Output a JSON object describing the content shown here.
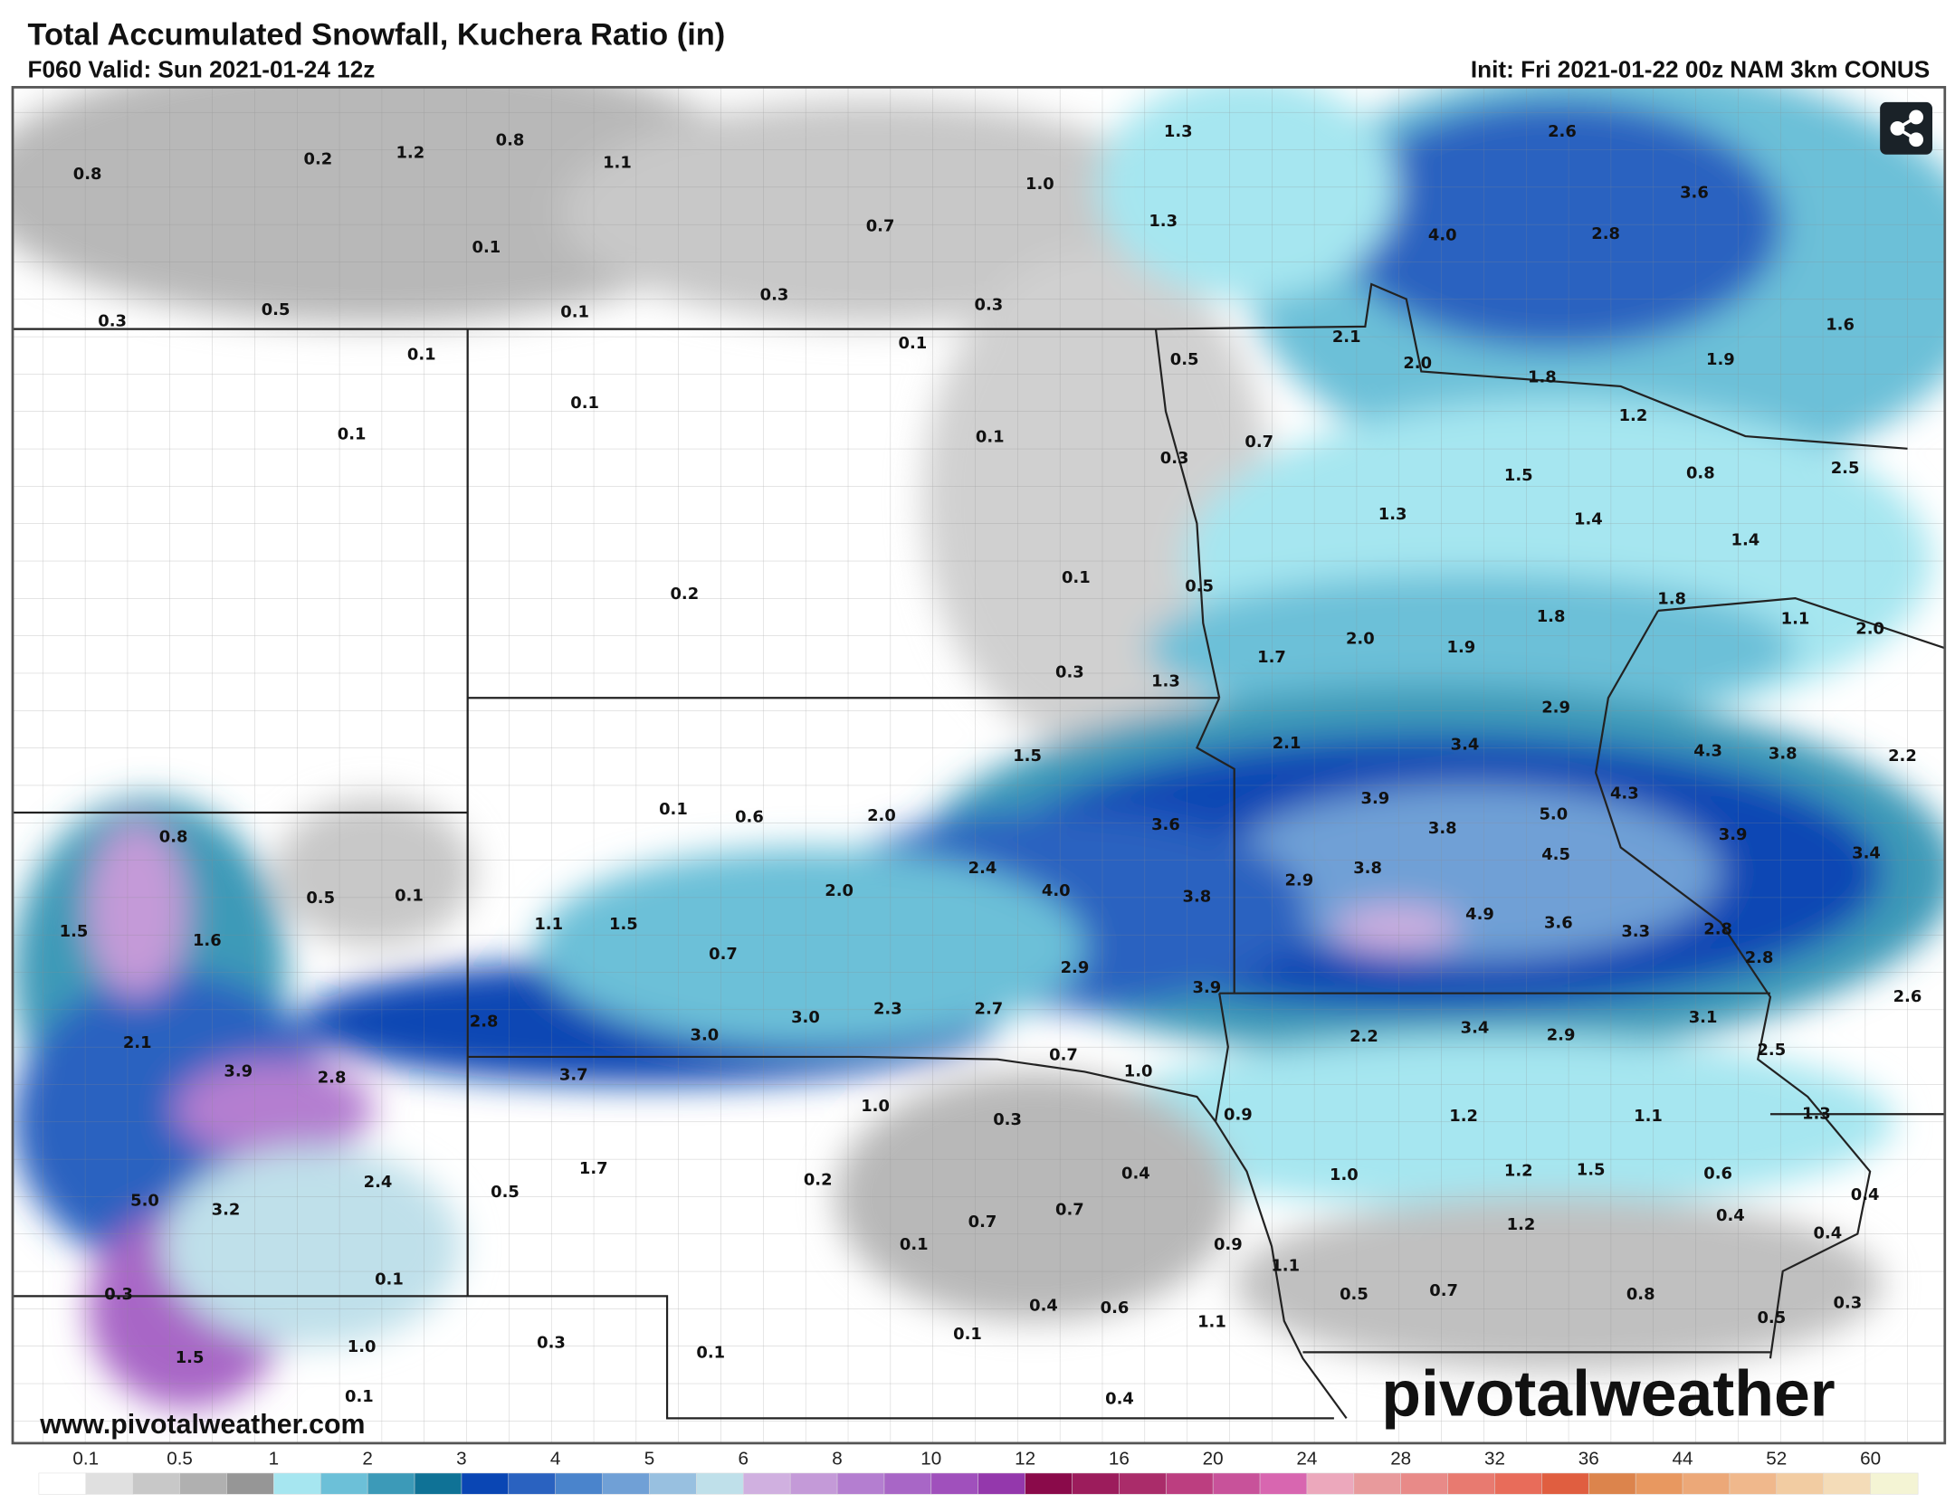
{
  "header": {
    "title": "Total Accumulated Snowfall, Kuchera Ratio (in)",
    "valid": "F060 Valid: Sun 2021-01-24 12z",
    "init": "Init: Fri 2021-01-22 00z NAM 3km CONUS"
  },
  "share_icon": "share-icon",
  "watermark": {
    "url": "www.pivotalweather.com",
    "logo": "pivotalweather"
  },
  "map_labels": [
    "0.8",
    "0.2",
    "1.2",
    "0.8",
    "1.1",
    "0.1",
    "0.3",
    "0.5",
    "0.1",
    "0.7",
    "1.0",
    "1.3",
    "1.3",
    "0.3",
    "0.3",
    "0.1",
    "2.6",
    "3.6",
    "4.0",
    "2.8",
    "1.6",
    "1.9",
    "2.1",
    "2.0",
    "1.8",
    "1.2",
    "0.5",
    "0.1",
    "0.1",
    "0.1",
    "0.1",
    "0.7",
    "0.3",
    "1.5",
    "0.8",
    "2.5",
    "1.3",
    "1.4",
    "1.4",
    "0.1",
    "0.5",
    "0.2",
    "1.8",
    "1.8",
    "1.1",
    "2.0",
    "2.0",
    "1.9",
    "1.7",
    "0.3",
    "1.3",
    "2.9",
    "2.1",
    "3.4",
    "4.3",
    "3.8",
    "2.2",
    "1.5",
    "4.3",
    "3.9",
    "5.0",
    "3.6",
    "3.8",
    "3.9",
    "3.4",
    "0.1",
    "0.6",
    "2.0",
    "4.5",
    "0.8",
    "2.4",
    "4.0",
    "3.8",
    "2.9",
    "3.8",
    "2.0",
    "0.5",
    "0.1",
    "1.5",
    "1.6",
    "1.1",
    "1.5",
    "4.9",
    "3.6",
    "3.3",
    "2.8",
    "2.8",
    "0.7",
    "2.9",
    "3.9",
    "2.6",
    "2.8",
    "3.0",
    "3.0",
    "2.3",
    "2.7",
    "3.1",
    "2.2",
    "3.4",
    "2.9",
    "2.1",
    "2.5",
    "3.9",
    "2.8",
    "3.7",
    "0.7",
    "1.0",
    "0.9",
    "1.2",
    "1.1",
    "1.3",
    "1.0",
    "0.3",
    "1.7",
    "2.4",
    "0.2",
    "0.4",
    "1.0",
    "1.2",
    "1.5",
    "0.6",
    "0.4",
    "5.0",
    "3.2",
    "0.5",
    "0.7",
    "0.7",
    "0.4",
    "1.2",
    "0.4",
    "0.1",
    "0.9",
    "1.1",
    "0.1",
    "0.3",
    "0.5",
    "0.7",
    "0.8",
    "0.4",
    "0.6",
    "0.3",
    "0.5",
    "1.1",
    "1.0",
    "0.3",
    "0.1",
    "0.1",
    "1.5",
    "0.1",
    "0.4"
  ],
  "legend": {
    "ticks": [
      "0.1",
      "0.5",
      "1",
      "2",
      "3",
      "4",
      "5",
      "6",
      "8",
      "10",
      "12",
      "16",
      "20",
      "24",
      "28",
      "32",
      "36",
      "44",
      "52",
      "60"
    ],
    "colors": [
      "#ffffff",
      "#e0e0e0",
      "#c8c8c8",
      "#b0b0b0",
      "#969696",
      "#a6e6f0",
      "#6cc0d8",
      "#3c9ab8",
      "#0f7296",
      "#0a46b4",
      "#2a62c0",
      "#4a84cc",
      "#70a0d6",
      "#98c0e0",
      "#bfe0ea",
      "#d0b0e0",
      "#c49ad8",
      "#b47ed0",
      "#a866c6",
      "#a050bc",
      "#9438ac",
      "#8a0a4a",
      "#9c1c5c",
      "#aa2c6a",
      "#bc3e80",
      "#c8529a",
      "#d866b0",
      "#eca8bc",
      "#e89a9c",
      "#e88a88",
      "#e87a70",
      "#e86c5a",
      "#e05e40",
      "#dc844c",
      "#e89860",
      "#eca878",
      "#f0b88c",
      "#f2cca2",
      "#f4dcb8",
      "#f4f4d4"
    ]
  }
}
